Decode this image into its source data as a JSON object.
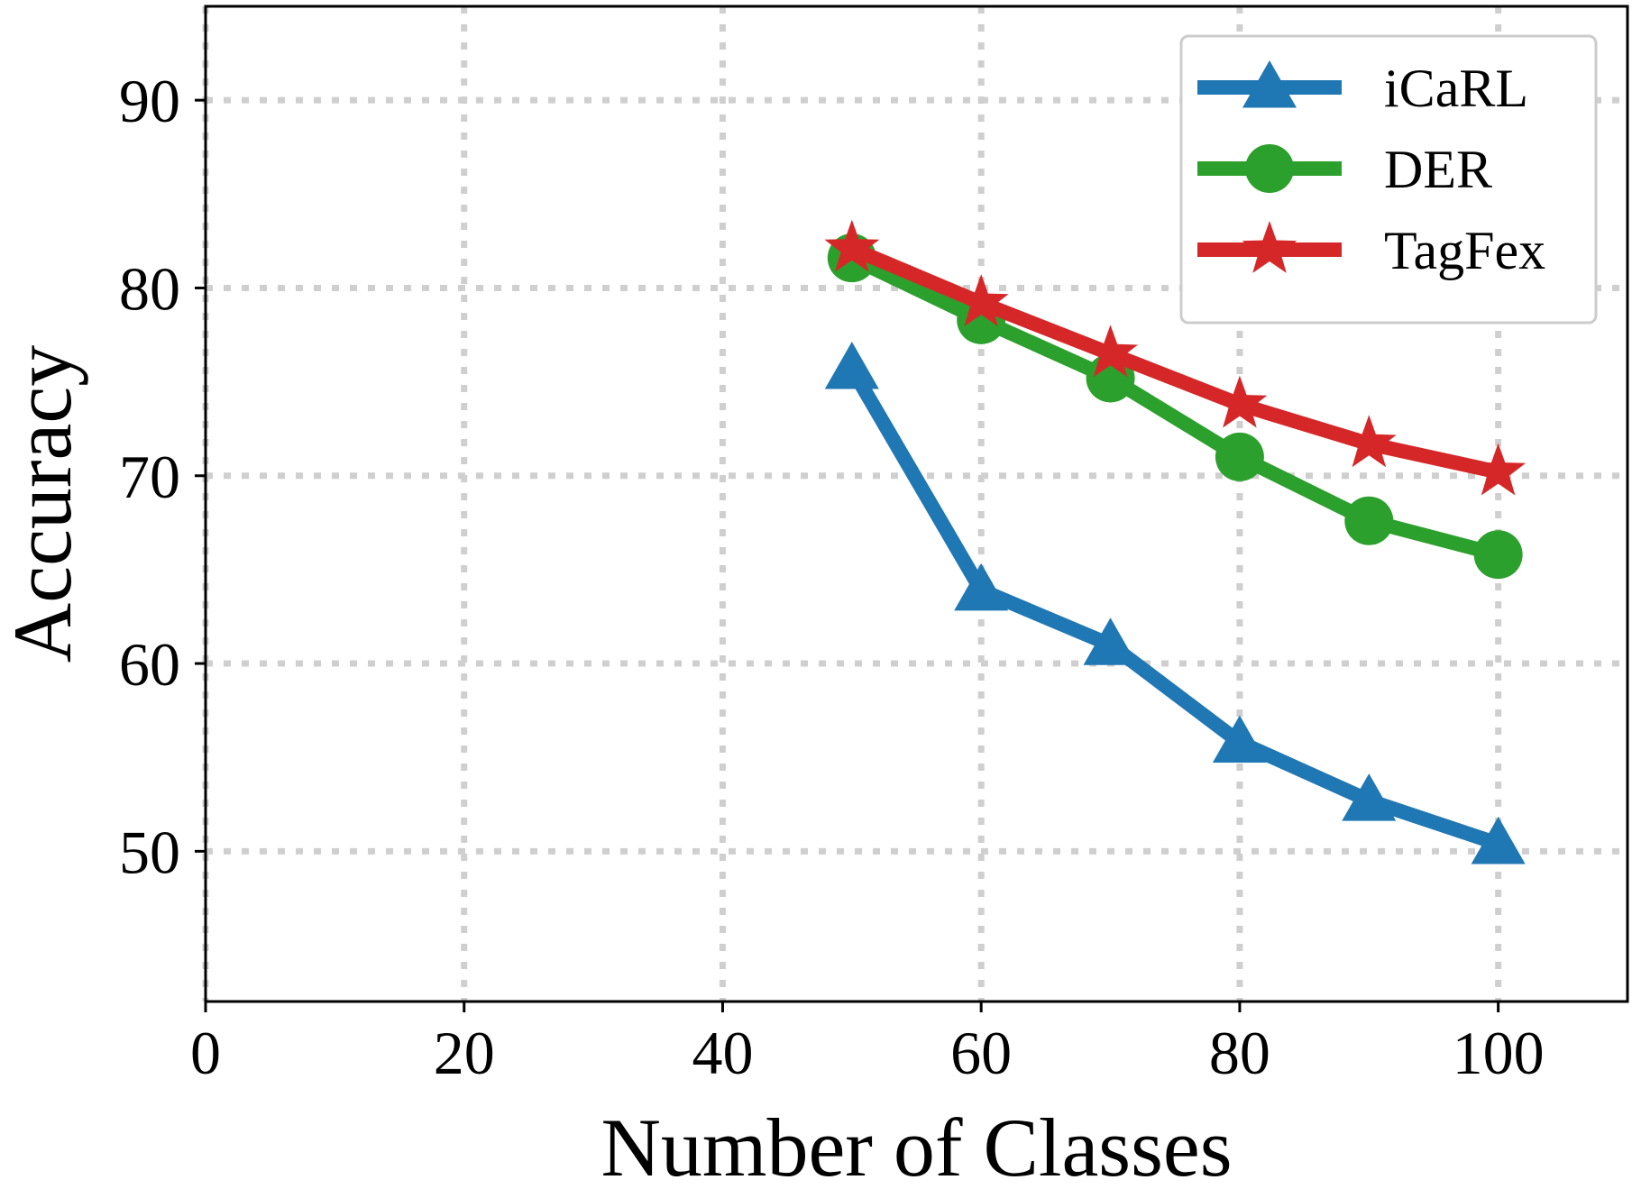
{
  "chart_data": {
    "type": "line",
    "xlabel": "Number of Classes",
    "ylabel": "Accuracy",
    "xlim": [
      0,
      110
    ],
    "ylim": [
      42,
      95
    ],
    "xticks": [
      0,
      20,
      40,
      60,
      80,
      100
    ],
    "yticks": [
      50,
      60,
      70,
      80,
      90
    ],
    "grid": true,
    "legend_position": "top-right",
    "x": [
      50,
      60,
      70,
      80,
      90,
      100
    ],
    "series": [
      {
        "name": "iCaRL",
        "color": "#1f77b4",
        "marker": "triangle",
        "values": [
          75.7,
          63.9,
          61.0,
          55.8,
          52.7,
          50.4
        ]
      },
      {
        "name": "DER",
        "color": "#2ca02c",
        "marker": "circle",
        "values": [
          81.6,
          78.3,
          75.2,
          71.0,
          67.6,
          65.8
        ]
      },
      {
        "name": "TagFex",
        "color": "#d62728",
        "marker": "star",
        "values": [
          82.1,
          79.2,
          76.5,
          73.8,
          71.7,
          70.2
        ]
      }
    ]
  }
}
